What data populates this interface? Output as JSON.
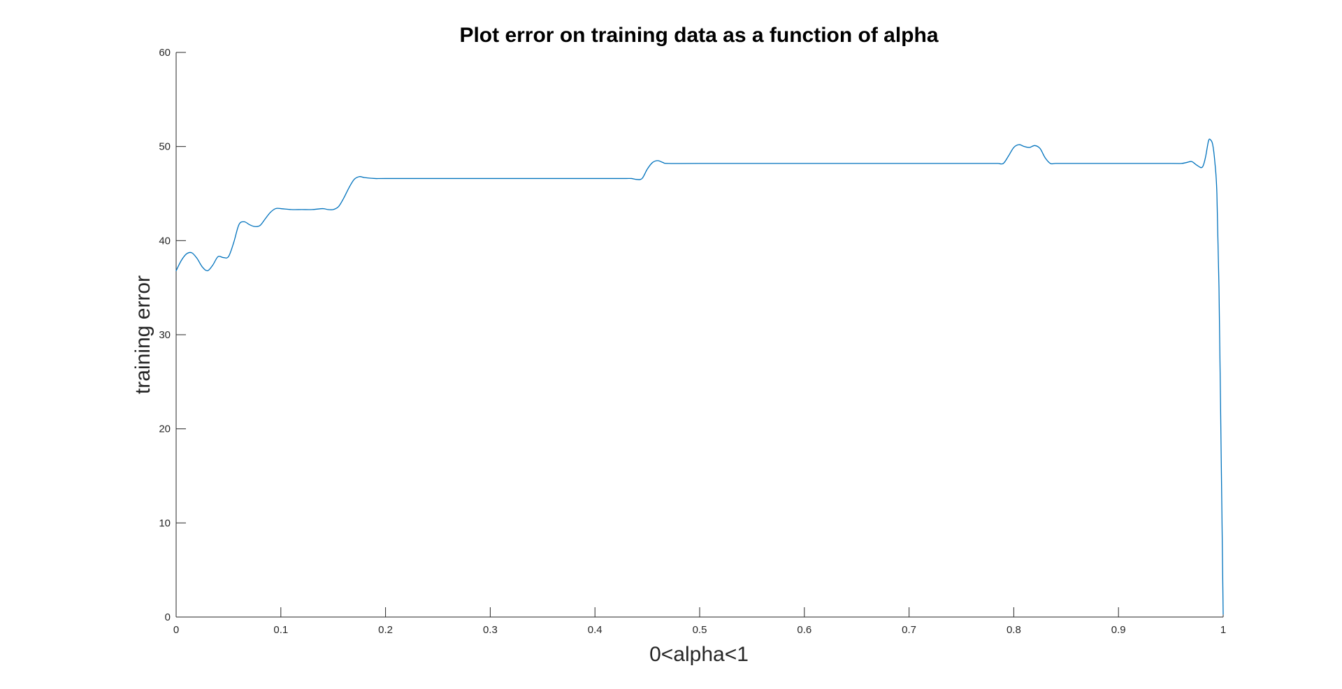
{
  "chart_data": {
    "type": "line",
    "title": "Plot error on training data as a function of alpha",
    "xlabel": "0<alpha<1",
    "ylabel": "training error",
    "xlim": [
      0,
      1
    ],
    "ylim": [
      0,
      60
    ],
    "xticks": [
      0,
      0.1,
      0.2,
      0.3,
      0.4,
      0.5,
      0.6,
      0.7,
      0.8,
      0.9,
      1
    ],
    "xtick_labels": [
      "0",
      "0.1",
      "0.2",
      "0.3",
      "0.4",
      "0.5",
      "0.6",
      "0.7",
      "0.8",
      "0.9",
      "1"
    ],
    "yticks": [
      0,
      10,
      20,
      30,
      40,
      50,
      60
    ],
    "ytick_labels": [
      "0",
      "10",
      "20",
      "30",
      "40",
      "50",
      "60"
    ],
    "grid": false,
    "legend": "none",
    "line_color": "#0072BD",
    "series": [
      {
        "x": [
          0,
          0.005,
          0.01,
          0.015,
          0.02,
          0.025,
          0.03,
          0.035,
          0.04,
          0.045,
          0.05,
          0.055,
          0.06,
          0.065,
          0.07,
          0.075,
          0.08,
          0.085,
          0.09,
          0.095,
          0.1,
          0.11,
          0.12,
          0.13,
          0.14,
          0.145,
          0.15,
          0.155,
          0.16,
          0.165,
          0.17,
          0.175,
          0.18,
          0.19,
          0.2,
          0.25,
          0.3,
          0.35,
          0.4,
          0.42,
          0.43,
          0.435,
          0.44,
          0.445,
          0.45,
          0.455,
          0.46,
          0.465,
          0.47,
          0.5,
          0.6,
          0.7,
          0.77,
          0.78,
          0.785,
          0.79,
          0.795,
          0.8,
          0.805,
          0.81,
          0.815,
          0.82,
          0.825,
          0.83,
          0.835,
          0.84,
          0.85,
          0.9,
          0.95,
          0.96,
          0.965,
          0.97,
          0.975,
          0.98,
          0.983,
          0.986,
          0.988,
          0.99,
          0.992,
          0.994,
          0.996,
          0.998,
          1.0
        ],
        "y": [
          36.8,
          37.9,
          38.6,
          38.7,
          38.1,
          37.2,
          36.8,
          37.4,
          38.3,
          38.2,
          38.3,
          39.8,
          41.7,
          42.0,
          41.7,
          41.5,
          41.6,
          42.3,
          43.0,
          43.4,
          43.4,
          43.3,
          43.3,
          43.3,
          43.4,
          43.3,
          43.3,
          43.6,
          44.5,
          45.6,
          46.5,
          46.8,
          46.7,
          46.6,
          46.6,
          46.6,
          46.6,
          46.6,
          46.6,
          46.6,
          46.6,
          46.6,
          46.5,
          46.6,
          47.6,
          48.3,
          48.5,
          48.3,
          48.2,
          48.2,
          48.2,
          48.2,
          48.2,
          48.2,
          48.2,
          48.2,
          49.0,
          49.9,
          50.2,
          50.0,
          49.9,
          50.1,
          49.8,
          48.8,
          48.2,
          48.2,
          48.2,
          48.2,
          48.2,
          48.2,
          48.3,
          48.4,
          48.0,
          47.8,
          48.8,
          50.6,
          50.7,
          50.2,
          48.4,
          45.0,
          35.0,
          18.0,
          0.3
        ]
      }
    ]
  }
}
